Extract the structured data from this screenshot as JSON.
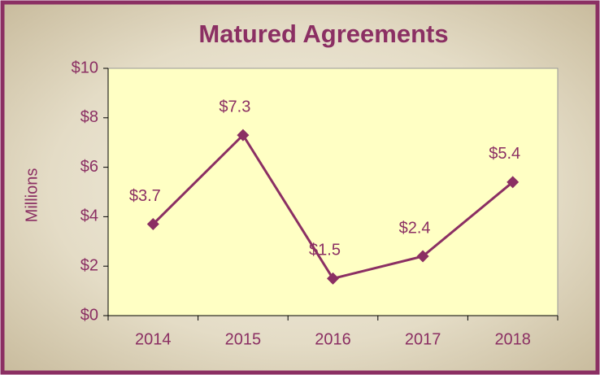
{
  "chart_data": {
    "type": "line",
    "title": "Matured Agreements",
    "y_label": "Millions",
    "categories": [
      "2014",
      "2015",
      "2016",
      "2017",
      "2018"
    ],
    "values": [
      3.7,
      7.3,
      1.5,
      2.4,
      5.4
    ],
    "value_labels": [
      "$3.7",
      "$7.3",
      "$1.5",
      "$2.4",
      "$5.4"
    ],
    "color": "#8b2f63",
    "ylim": [
      0,
      10
    ],
    "yticks": [
      {
        "value": 0,
        "label": "$0"
      },
      {
        "value": 2,
        "label": "$2"
      },
      {
        "value": 4,
        "label": "$4"
      },
      {
        "value": 6,
        "label": "$6"
      },
      {
        "value": 8,
        "label": "$8"
      },
      {
        "value": 10,
        "label": "$10"
      }
    ]
  }
}
